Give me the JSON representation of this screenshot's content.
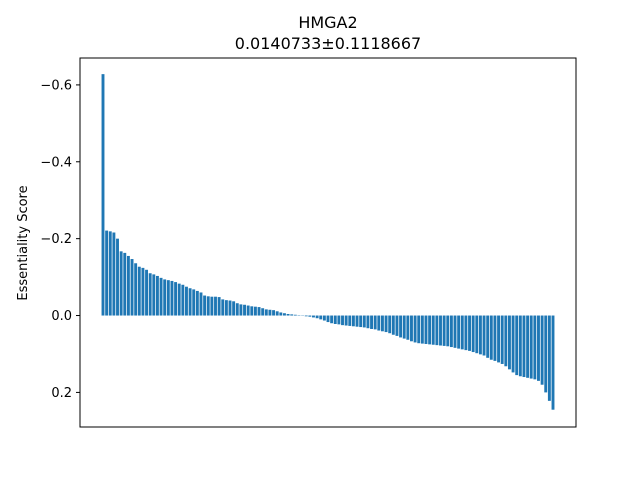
{
  "chart_data": {
    "type": "bar",
    "title": "HMGA2",
    "subtitle": "0.0140733±0.1118667",
    "xlabel": "",
    "ylabel": "Essentiality Score",
    "ylim": [
      0.29,
      -0.67
    ],
    "y_inverted": true,
    "y_ticks": [
      -0.6,
      -0.4,
      -0.2,
      0.0,
      0.2
    ],
    "y_tick_labels": [
      "−0.6",
      "−0.4",
      "−0.2",
      "0.0",
      "0.2"
    ],
    "x_ticks_shown": false,
    "grid": false,
    "bar_color": "#1f77b4",
    "values": [
      -0.628,
      -0.221,
      -0.219,
      -0.216,
      -0.2,
      -0.167,
      -0.163,
      -0.155,
      -0.147,
      -0.136,
      -0.127,
      -0.124,
      -0.119,
      -0.11,
      -0.107,
      -0.103,
      -0.098,
      -0.094,
      -0.092,
      -0.09,
      -0.087,
      -0.083,
      -0.08,
      -0.075,
      -0.071,
      -0.068,
      -0.064,
      -0.06,
      -0.052,
      -0.05,
      -0.049,
      -0.049,
      -0.048,
      -0.042,
      -0.04,
      -0.039,
      -0.037,
      -0.032,
      -0.029,
      -0.028,
      -0.026,
      -0.024,
      -0.023,
      -0.022,
      -0.019,
      -0.016,
      -0.015,
      -0.014,
      -0.011,
      -0.008,
      -0.006,
      -0.004,
      -0.003,
      -0.002,
      -0.001,
      0.0,
      0.002,
      0.003,
      0.005,
      0.007,
      0.01,
      0.013,
      0.017,
      0.02,
      0.022,
      0.023,
      0.025,
      0.026,
      0.027,
      0.028,
      0.029,
      0.03,
      0.031,
      0.033,
      0.035,
      0.036,
      0.039,
      0.041,
      0.043,
      0.046,
      0.05,
      0.053,
      0.057,
      0.06,
      0.063,
      0.067,
      0.07,
      0.072,
      0.073,
      0.074,
      0.075,
      0.076,
      0.077,
      0.078,
      0.079,
      0.08,
      0.082,
      0.084,
      0.086,
      0.088,
      0.09,
      0.092,
      0.095,
      0.098,
      0.101,
      0.104,
      0.11,
      0.115,
      0.118,
      0.122,
      0.126,
      0.132,
      0.14,
      0.148,
      0.155,
      0.158,
      0.16,
      0.162,
      0.164,
      0.166,
      0.17,
      0.18,
      0.2,
      0.222,
      0.245
    ]
  }
}
